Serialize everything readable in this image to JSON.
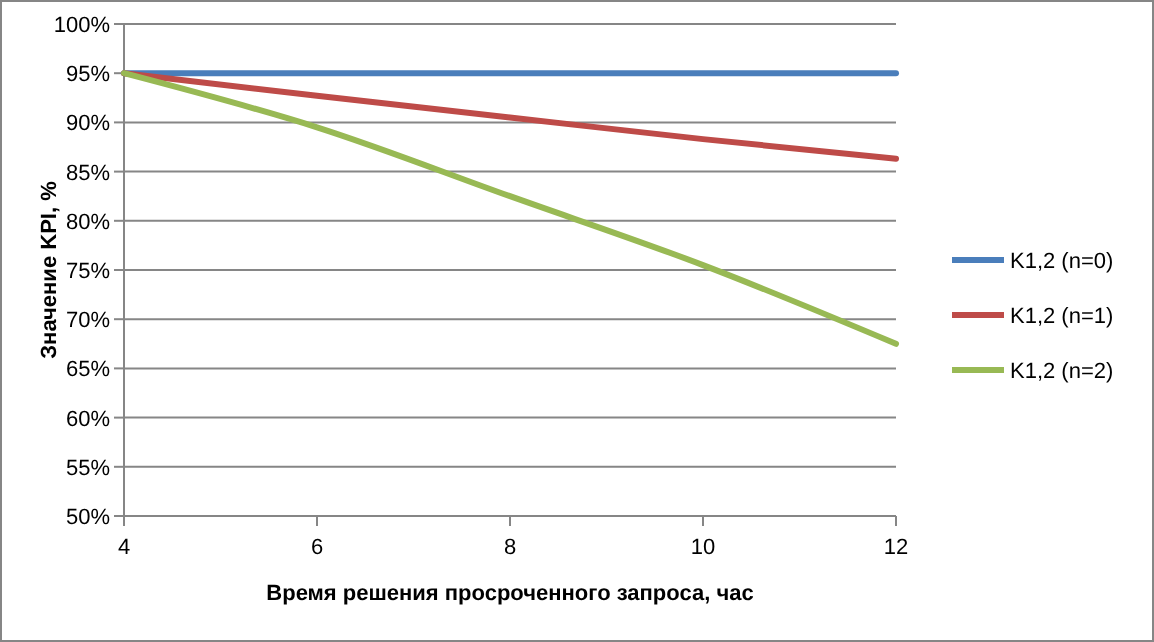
{
  "chart_data": {
    "type": "line",
    "xlabel": "Время решения просроченного запроса, час",
    "ylabel": "Значение KPI, %",
    "x": [
      4,
      6,
      8,
      10,
      12
    ],
    "series": [
      {
        "name": "K1,2 (n=0)",
        "color": "#4a7ebb",
        "values": [
          95,
          95,
          95,
          95,
          95
        ]
      },
      {
        "name": "K1,2 (n=1)",
        "color": "#be4b48",
        "values": [
          95,
          92.7,
          90.5,
          88.3,
          86.3
        ]
      },
      {
        "name": "K1,2 (n=2)",
        "color": "#98b954",
        "values": [
          95,
          89.5,
          82.5,
          75.5,
          67.5
        ]
      }
    ],
    "xlim": [
      4,
      12
    ],
    "xticks": [
      4,
      6,
      8,
      10,
      12
    ],
    "ylim": [
      50,
      100
    ],
    "yticks": [
      {
        "value": 50,
        "label": "50%"
      },
      {
        "value": 55,
        "label": "55%"
      },
      {
        "value": 60,
        "label": "60%"
      },
      {
        "value": 65,
        "label": "65%"
      },
      {
        "value": 70,
        "label": "70%"
      },
      {
        "value": 75,
        "label": "75%"
      },
      {
        "value": 80,
        "label": "80%"
      },
      {
        "value": 85,
        "label": "85%"
      },
      {
        "value": 90,
        "label": "90%"
      },
      {
        "value": 95,
        "label": "95%"
      },
      {
        "value": 100,
        "label": "100%"
      }
    ],
    "grid": "y",
    "legend": "right",
    "marker": "none",
    "line_style": "solid"
  }
}
